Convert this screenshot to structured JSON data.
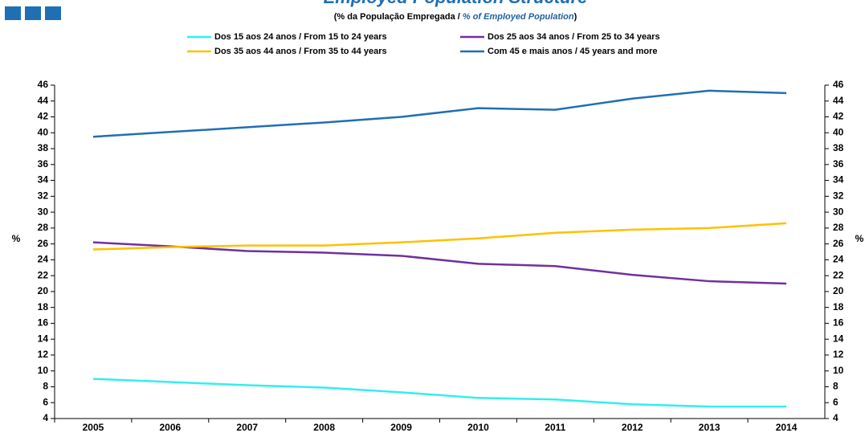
{
  "chart_data": {
    "type": "line",
    "title": "Employed Population Structure",
    "subtitle": [
      "(% da População Empregada  / ",
      "% of Employed Population",
      ")"
    ],
    "ylabel": "%",
    "y2label": "%",
    "categories": [
      "2005",
      "2006",
      "2007",
      "2008",
      "2009",
      "2010",
      "2011",
      "2012",
      "2013",
      "2014"
    ],
    "series": [
      {
        "name": "Dos 15 aos 24 anos / From 15 to 24 years",
        "color": "#33eeee",
        "values": [
          9.0,
          8.6,
          8.2,
          7.9,
          7.3,
          6.6,
          6.4,
          5.8,
          5.5,
          5.5
        ]
      },
      {
        "name": "Dos 25 aos 34 anos / From 25 to 34 years",
        "color": "#7030a0",
        "values": [
          26.2,
          25.7,
          25.1,
          24.9,
          24.5,
          23.5,
          23.2,
          22.1,
          21.3,
          21.0
        ]
      },
      {
        "name": "Dos 35 aos 44 anos / From 35 to 44 years",
        "color": "#ffc000",
        "values": [
          25.3,
          25.6,
          25.8,
          25.8,
          26.2,
          26.7,
          27.4,
          27.8,
          28.0,
          28.6
        ]
      },
      {
        "name": "Com 45 e mais anos / 45 years and more",
        "color": "#1f6fb4",
        "values": [
          39.5,
          40.1,
          40.7,
          41.3,
          42.0,
          43.1,
          42.9,
          44.3,
          45.3,
          45.0
        ]
      }
    ],
    "ylim": [
      4,
      46
    ],
    "yticks": [
      4,
      6,
      8,
      10,
      12,
      14,
      16,
      18,
      20,
      22,
      24,
      26,
      28,
      30,
      32,
      34,
      36,
      38,
      40,
      42,
      44,
      46
    ],
    "y2lim": [
      4,
      46
    ],
    "y2ticks": [
      4,
      6,
      8,
      10,
      12,
      14,
      16,
      18,
      20,
      22,
      24,
      26,
      28,
      30,
      32,
      34,
      36,
      38,
      40,
      42,
      44,
      46
    ],
    "grid": false
  }
}
